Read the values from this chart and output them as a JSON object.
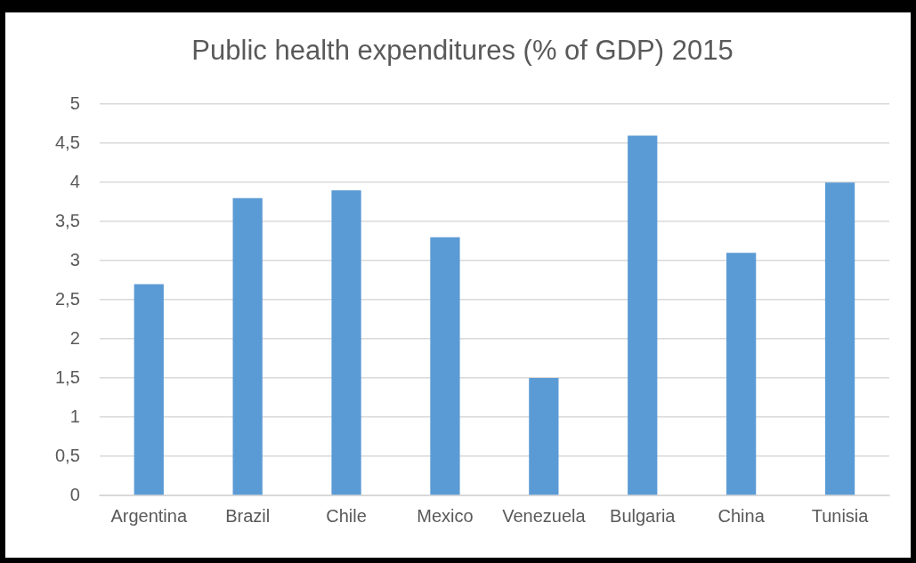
{
  "chart_data": {
    "type": "bar",
    "title": "Public health expenditures (% of GDP) 2015",
    "categories": [
      "Argentina",
      "Brazil",
      "Chile",
      "Mexico",
      "Venezuela",
      "Bulgaria",
      "China",
      "Tunisia"
    ],
    "values": [
      2.7,
      3.8,
      3.9,
      3.3,
      1.5,
      4.6,
      3.1,
      4.0
    ],
    "color": "#5b9bd5",
    "ylim": [
      0,
      5
    ],
    "yticks": [
      0,
      {
        "value": 0.5,
        "label": "0,5"
      },
      1,
      {
        "value": 1.5,
        "label": "1,5"
      },
      2,
      {
        "value": 2.5,
        "label": "2,5"
      },
      3,
      {
        "value": 3.5,
        "label": "3,5"
      },
      4,
      {
        "value": 4.5,
        "label": "4,5"
      },
      5
    ],
    "grid": "y",
    "legend": false
  }
}
